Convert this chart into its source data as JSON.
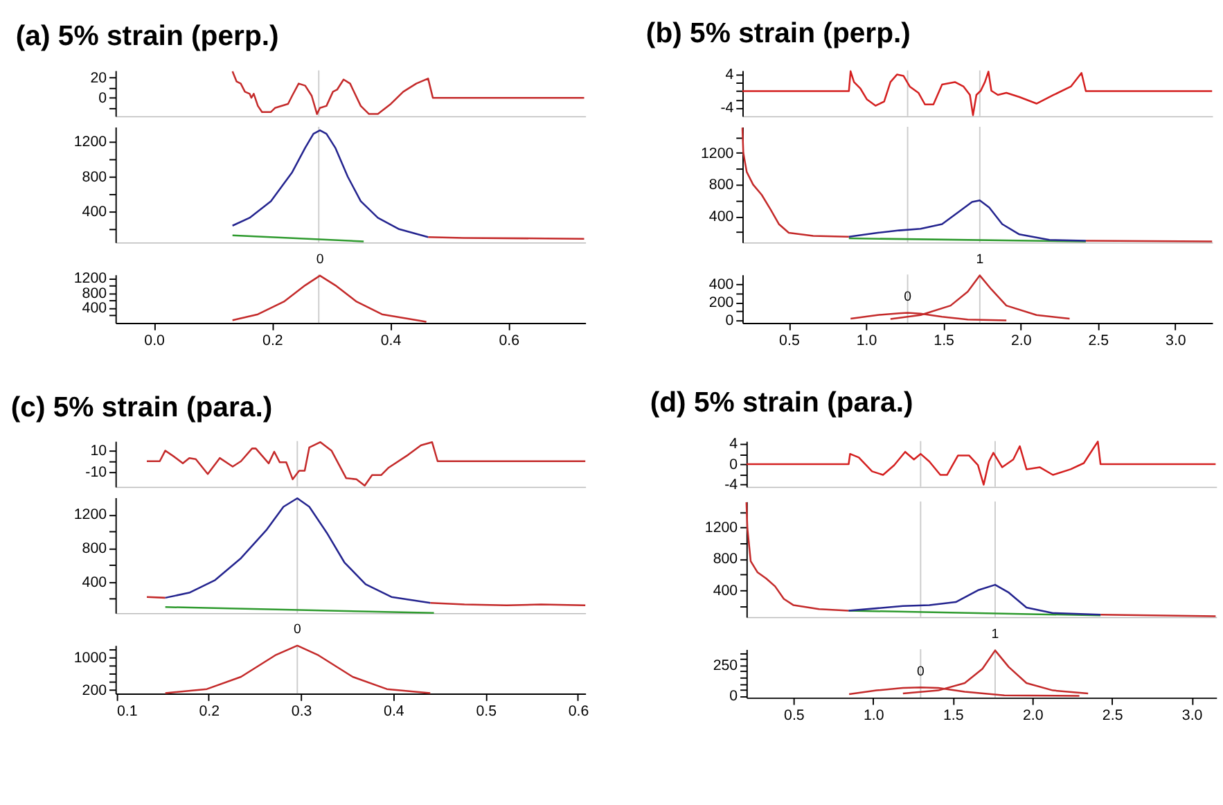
{
  "chart_data": [
    {
      "type": "line",
      "title": "(a) 5% strain (perp.)",
      "tick_labels": "y",
      "xlim": [
        -0.065,
        0.73
      ],
      "ylim": [
        -18,
        27
      ],
      "yticks": [
        20,
        0,
        {
          "value": 10,
          "label": null
        },
        {
          "value": -10,
          "label": null
        }
      ],
      "ref_lines": [
        {
          "axis": "x",
          "value": 0.279,
          "color": "#cccccc"
        }
      ],
      "series": [
        {
          "color": "#c42a2a",
          "x": [
            0.133,
            0.14,
            0.147,
            0.154,
            0.162,
            0.165,
            0.169,
            0.176,
            0.183,
            0.198,
            0.205,
            0.227,
            0.234,
            0.245,
            0.256,
            0.267,
            0.276,
            0.281,
            0.292,
            0.303,
            0.31,
            0.321,
            0.332,
            0.35,
            0.364,
            0.379,
            0.401,
            0.422,
            0.444,
            0.464,
            0.472,
            0.728
          ],
          "values": [
            26,
            16,
            14,
            6,
            4,
            0,
            4,
            -8,
            -14,
            -14,
            -10,
            -6,
            2,
            14,
            12,
            2,
            -16,
            -10,
            -8,
            6,
            8,
            18,
            14,
            -8,
            -16,
            -16,
            -6,
            6,
            14,
            19,
            0,
            0
          ]
        }
      ]
    },
    {
      "type": "line",
      "tick_labels": "y",
      "xlim": [
        -0.065,
        0.73
      ],
      "ylim": [
        50,
        1370
      ],
      "yticks": [
        1200,
        800,
        400,
        {
          "value": 1000,
          "label": null
        },
        {
          "value": 600,
          "label": null
        },
        {
          "value": 200,
          "label": null
        }
      ],
      "ref_lines": [
        {
          "axis": "x",
          "value": 0.279,
          "color": "#cccccc"
        }
      ],
      "series": [
        {
          "color": "#c42a2a",
          "x": [
            0.464,
            0.524,
            0.728
          ],
          "values": [
            110,
            100,
            90
          ]
        },
        {
          "color": "#2e9a2e",
          "x": [
            0.133,
            0.355
          ],
          "values": [
            130,
            60
          ]
        },
        {
          "color": "#24248f",
          "x": [
            0.133,
            0.162,
            0.198,
            0.234,
            0.256,
            0.27,
            0.281,
            0.292,
            0.307,
            0.328,
            0.35,
            0.379,
            0.415,
            0.464
          ],
          "values": [
            240,
            330,
            520,
            850,
            1130,
            1290,
            1330,
            1290,
            1130,
            800,
            520,
            330,
            200,
            110
          ]
        }
      ]
    },
    {
      "type": "line",
      "xlim": [
        -0.065,
        0.73
      ],
      "ylim": [
        0,
        1300
      ],
      "yticks": [
        1200,
        800,
        400,
        {
          "value": 1000,
          "label": null
        },
        {
          "value": 600,
          "label": null
        },
        {
          "value": 200,
          "label": null
        }
      ],
      "xticks": [
        {
          "value": 0,
          "label": "0.0"
        },
        0.2,
        0.4,
        0.6
      ],
      "ref_lines": [
        {
          "axis": "x",
          "value": 0.279,
          "color": "#cccccc"
        }
      ],
      "annotations": [
        {
          "text": "0",
          "x": 0.281,
          "y": 1270
        }
      ],
      "series": [
        {
          "color": "#c42a2a",
          "x": [
            0.133,
            0.176,
            0.22,
            0.256,
            0.281,
            0.307,
            0.343,
            0.386,
            0.461
          ],
          "values": [
            70,
            230,
            570,
            1010,
            1270,
            1010,
            570,
            230,
            30
          ]
        }
      ]
    },
    {
      "type": "line",
      "title": "(b) 5% strain (perp.)",
      "tick_labels": "y",
      "xlim": [
        0.2,
        3.24
      ],
      "ylim": [
        -6,
        5
      ],
      "yticks": [
        4,
        -4,
        {
          "value": 2,
          "label": null
        },
        {
          "value": 0,
          "label": null
        },
        {
          "value": -2,
          "label": null
        }
      ],
      "ref_lines": [
        {
          "axis": "x",
          "value": 1.269,
          "color": "#cccccc"
        },
        {
          "axis": "x",
          "value": 1.736,
          "color": "#cccccc"
        }
      ],
      "series": [
        {
          "color": "#d42020",
          "x": [
            0.2,
            0.889,
            0.9,
            0.922,
            0.964,
            1.006,
            1.061,
            1.117,
            1.158,
            1.2,
            1.242,
            1.283,
            1.339,
            1.381,
            1.436,
            1.492,
            1.575,
            1.631,
            1.672,
            1.692,
            1.714,
            1.742,
            1.769,
            1.792,
            1.811,
            1.853,
            1.908,
            1.992,
            2.103,
            2.214,
            2.325,
            2.394,
            2.422,
            3.239
          ],
          "values": [
            0,
            0,
            4.8,
            2.2,
            0.6,
            -2,
            -3.5,
            -2.5,
            2.2,
            4,
            3.7,
            1.1,
            -0.4,
            -3.2,
            -3.2,
            1.6,
            2.2,
            1.1,
            -0.9,
            -5.8,
            -0.9,
            0.1,
            2.2,
            4.7,
            0.1,
            -0.9,
            -0.4,
            -1.4,
            -3,
            -0.9,
            1.1,
            4.4,
            0,
            0
          ]
        }
      ]
    },
    {
      "type": "line",
      "tick_labels": "y",
      "xlim": [
        0.2,
        3.24
      ],
      "ylim": [
        70,
        1530
      ],
      "yticks": [
        1200,
        800,
        400,
        {
          "value": 1400,
          "label": null
        },
        {
          "value": 1000,
          "label": null
        },
        {
          "value": 600,
          "label": null
        },
        {
          "value": 200,
          "label": null
        }
      ],
      "ref_lines": [
        {
          "axis": "x",
          "value": 1.269,
          "color": "#cccccc"
        },
        {
          "axis": "x",
          "value": 1.736,
          "color": "#cccccc"
        }
      ],
      "series": [
        {
          "color": "#c42a2a",
          "x": [
            0.2,
            0.206,
            0.228,
            0.269,
            0.325,
            0.381,
            0.436,
            0.5,
            0.658,
            0.889,
            1.6,
            2.422,
            3.239
          ],
          "values": [
            1520,
            1200,
            960,
            800,
            670,
            490,
            300,
            190,
            150,
            140,
            null,
            90,
            80
          ]
        },
        {
          "color": "#2e9a2e",
          "x": [
            0.889,
            2.422
          ],
          "values": [
            120,
            80
          ]
        },
        {
          "color": "#24248f",
          "x": [
            0.889,
            1.075,
            1.214,
            1.353,
            1.492,
            1.603,
            1.686,
            1.736,
            1.797,
            1.881,
            1.992,
            2.186,
            2.422
          ],
          "values": [
            140,
            190,
            220,
            240,
            300,
            460,
            580,
            600,
            510,
            300,
            170,
            100,
            90
          ]
        }
      ]
    },
    {
      "type": "line",
      "xlim": [
        0.2,
        3.24
      ],
      "ylim": [
        -27,
        510
      ],
      "yticks": [
        400,
        200,
        0,
        {
          "value": 300,
          "label": null
        },
        {
          "value": 100,
          "label": null
        }
      ],
      "xticks": [
        0.5,
        {
          "value": 1,
          "label": "1.0"
        },
        1.5,
        {
          "value": 2,
          "label": "2.0"
        },
        2.5,
        {
          "value": 3,
          "label": "3.0"
        }
      ],
      "ref_lines": [
        {
          "axis": "x",
          "value": 1.269,
          "color": "#cccccc"
        },
        {
          "axis": "x",
          "value": 1.736,
          "color": "#cccccc"
        }
      ],
      "annotations": [
        {
          "text": "0",
          "x": 1.269,
          "y": 85
        },
        {
          "text": "1",
          "x": 1.736,
          "y": 500
        }
      ],
      "series": [
        {
          "color": "#c42a2a",
          "x": [
            0.9,
            1.075,
            1.214,
            1.269,
            1.353,
            1.492,
            1.658,
            1.908
          ],
          "values": [
            20,
            60,
            80,
            85,
            75,
            40,
            10,
            0
          ]
        },
        {
          "color": "#c42a2a",
          "x": [
            1.158,
            1.353,
            1.547,
            1.658,
            1.736,
            1.811,
            1.908,
            2.103,
            2.317
          ],
          "values": [
            15,
            60,
            165,
            320,
            500,
            345,
            165,
            60,
            20
          ]
        }
      ]
    },
    {
      "type": "line",
      "title": "(c) 5% strain (para.)",
      "tick_labels": "y",
      "xlim": [
        0.099,
        0.608
      ],
      "ylim": [
        -24,
        19
      ],
      "yticks": [
        10,
        -10,
        {
          "value": 0,
          "label": null
        }
      ],
      "ref_lines": [
        {
          "axis": "x",
          "value": 0.296,
          "color": "#cccccc"
        }
      ],
      "series": [
        {
          "color": "#c42a2a",
          "x": [
            0.133,
            0.147,
            0.153,
            0.163,
            0.172,
            0.179,
            0.186,
            0.199,
            0.212,
            0.226,
            0.235,
            0.247,
            0.251,
            0.265,
            0.271,
            0.277,
            0.284,
            0.291,
            0.298,
            0.304,
            0.309,
            0.321,
            0.333,
            0.349,
            0.36,
            0.369,
            0.377,
            0.387,
            0.395,
            0.416,
            0.43,
            0.442,
            0.448,
            0.608
          ],
          "values": [
            0,
            0,
            10,
            4,
            -2,
            3,
            2,
            -12,
            3,
            -5,
            0,
            12,
            12,
            -2,
            9,
            -1,
            -1,
            -17,
            -9,
            -9,
            13,
            18,
            10,
            -16,
            -17,
            -23,
            -13,
            -13,
            -6,
            6,
            15,
            18,
            0,
            0
          ]
        }
      ]
    },
    {
      "type": "line",
      "tick_labels": "y",
      "xlim": [
        0.099,
        0.608
      ],
      "ylim": [
        30,
        1400
      ],
      "yticks": [
        1200,
        800,
        400,
        {
          "value": 1000,
          "label": null
        },
        {
          "value": 600,
          "label": null
        },
        {
          "value": 200,
          "label": null
        }
      ],
      "ref_lines": [
        {
          "axis": "x",
          "value": 0.296,
          "color": "#cccccc"
        }
      ],
      "series": [
        {
          "color": "#c42a2a",
          "x": [
            0.133,
            0.153,
            0.3,
            0.44,
            0.477,
            0.523,
            0.56,
            0.608
          ],
          "values": [
            220,
            210,
            null,
            150,
            130,
            120,
            130,
            120
          ]
        },
        {
          "color": "#2e9a2e",
          "x": [
            0.153,
            0.444
          ],
          "values": [
            100,
            30
          ]
        },
        {
          "color": "#24248f",
          "x": [
            0.153,
            0.179,
            0.207,
            0.235,
            0.263,
            0.281,
            0.296,
            0.309,
            0.328,
            0.347,
            0.37,
            0.398,
            0.44
          ],
          "values": [
            210,
            270,
            420,
            680,
            1020,
            1290,
            1390,
            1290,
            980,
            630,
            370,
            220,
            150
          ]
        }
      ]
    },
    {
      "type": "line",
      "xlim": [
        0.099,
        0.608
      ],
      "ylim": [
        110,
        1300
      ],
      "yticks": [
        1000,
        200,
        {
          "value": 400,
          "label": null
        },
        {
          "value": 600,
          "label": null
        },
        {
          "value": 800,
          "label": null
        },
        {
          "value": 1200,
          "label": null
        }
      ],
      "xticks": [
        0.1,
        0.2,
        0.3,
        0.4,
        0.5,
        0.6
      ],
      "ref_lines": [
        {
          "axis": "x",
          "value": 0.296,
          "color": "#cccccc"
        }
      ],
      "annotations": [
        {
          "text": "0",
          "x": 0.296,
          "y": 1290
        }
      ],
      "series": [
        {
          "color": "#c42a2a",
          "x": [
            0.153,
            0.198,
            0.235,
            0.272,
            0.296,
            0.319,
            0.356,
            0.393,
            0.44
          ],
          "values": [
            120,
            220,
            520,
            1050,
            1290,
            1050,
            520,
            220,
            120
          ]
        }
      ]
    },
    {
      "type": "line",
      "title": "(d) 5% strain (para.)",
      "tick_labels": "y",
      "xlim": [
        0.204,
        3.155
      ],
      "ylim": [
        -4.4,
        4.5
      ],
      "yticks": [
        4,
        0,
        -4,
        {
          "value": 2,
          "label": null
        },
        {
          "value": -2,
          "label": null
        }
      ],
      "ref_lines": [
        {
          "axis": "x",
          "value": 1.298,
          "color": "#cccccc"
        },
        {
          "axis": "x",
          "value": 1.766,
          "color": "#cccccc"
        }
      ],
      "series": [
        {
          "color": "#d42020",
          "x": [
            0.204,
            0.846,
            0.855,
            0.91,
            0.993,
            1.062,
            1.132,
            1.201,
            1.256,
            1.298,
            1.353,
            1.422,
            1.464,
            1.533,
            1.602,
            1.658,
            1.694,
            1.727,
            1.755,
            1.81,
            1.88,
            1.921,
            1.963,
            2.046,
            2.129,
            2.24,
            2.323,
            2.392,
            2.411,
            2.428,
            3.151
          ],
          "values": [
            0,
            0,
            2,
            1.3,
            -1.4,
            -2.1,
            -0.2,
            2.4,
            0.9,
            2,
            0.5,
            -2.1,
            -2.1,
            1.7,
            1.7,
            -0.2,
            -4,
            0.5,
            2.2,
            -0.6,
            0.9,
            3.5,
            -1,
            -0.6,
            -2.1,
            -1,
            0.2,
            3.5,
            4.4,
            0,
            0
          ]
        }
      ]
    },
    {
      "type": "line",
      "tick_labels": "y",
      "xlim": [
        0.204,
        3.155
      ],
      "ylim": [
        60,
        1530
      ],
      "yticks": [
        1200,
        800,
        400,
        {
          "value": 1400,
          "label": null
        },
        {
          "value": 1000,
          "label": null
        },
        {
          "value": 600,
          "label": null
        },
        {
          "value": 200,
          "label": null
        }
      ],
      "ref_lines": [
        {
          "axis": "x",
          "value": 1.298,
          "color": "#cccccc"
        },
        {
          "axis": "x",
          "value": 1.766,
          "color": "#cccccc"
        }
      ],
      "series": [
        {
          "color": "#c42a2a",
          "x": [
            0.204,
            0.21,
            0.231,
            0.273,
            0.328,
            0.384,
            0.439,
            0.5,
            0.66,
            0.846,
            1.6,
            2.428,
            3.151
          ],
          "values": [
            1520,
            1190,
            770,
            630,
            550,
            450,
            290,
            210,
            160,
            140,
            null,
            90,
            70
          ]
        },
        {
          "color": "#2e9a2e",
          "x": [
            0.846,
            2.428
          ],
          "values": [
            140,
            80
          ]
        },
        {
          "color": "#24248f",
          "x": [
            0.846,
            1.021,
            1.187,
            1.353,
            1.519,
            1.658,
            1.766,
            1.852,
            1.963,
            2.129,
            2.428
          ],
          "values": [
            140,
            170,
            200,
            210,
            250,
            400,
            470,
            370,
            180,
            110,
            90
          ]
        }
      ]
    },
    {
      "type": "line",
      "xlim": [
        0.204,
        3.155
      ],
      "ylim": [
        -13,
        380
      ],
      "yticks": [
        250,
        0,
        {
          "value": 50,
          "label": null
        },
        {
          "value": 100,
          "label": null
        },
        {
          "value": 150,
          "label": null
        },
        {
          "value": 200,
          "label": null
        },
        {
          "value": 300,
          "label": null
        },
        {
          "value": 350,
          "label": null
        }
      ],
      "xticks": [
        0.5,
        {
          "value": 1,
          "label": "1.0"
        },
        1.5,
        {
          "value": 2,
          "label": "2.0"
        },
        2.5,
        {
          "value": 3,
          "label": "3.0"
        }
      ],
      "ref_lines": [
        {
          "axis": "x",
          "value": 1.298,
          "color": "#cccccc"
        },
        {
          "axis": "x",
          "value": 1.766,
          "color": "#cccccc"
        }
      ],
      "annotations": [
        {
          "text": "0",
          "x": 1.298,
          "y": 70
        },
        {
          "text": "1",
          "x": 1.766,
          "y": 370
        }
      ],
      "series": [
        {
          "color": "#c42a2a",
          "x": [
            0.849,
            1.021,
            1.187,
            1.298,
            1.409,
            1.575,
            1.824,
            2.295
          ],
          "values": [
            15,
            45,
            65,
            70,
            65,
            35,
            5,
            0
          ]
        },
        {
          "color": "#c42a2a",
          "x": [
            1.187,
            1.409,
            1.575,
            1.686,
            1.766,
            1.852,
            1.963,
            2.129,
            2.35
          ],
          "values": [
            20,
            45,
            105,
            220,
            370,
            235,
            105,
            45,
            20
          ]
        }
      ]
    }
  ]
}
